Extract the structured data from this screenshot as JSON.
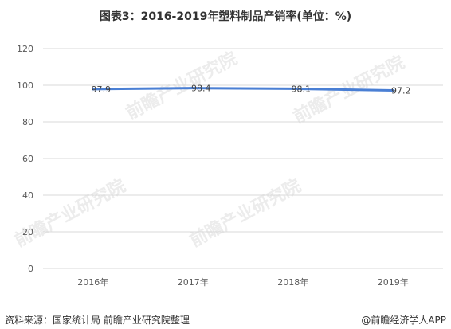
{
  "chart_data": {
    "type": "line",
    "title": "图表3：2016-2019年塑料制品产销率(单位：%)",
    "categories": [
      "2016年",
      "2017年",
      "2018年",
      "2019年"
    ],
    "series": [
      {
        "values": [
          97.9,
          98.4,
          98.1,
          97.2
        ]
      }
    ],
    "data_labels": [
      "97.9",
      "98.4",
      "98.1",
      "97.2"
    ],
    "ylim": [
      0,
      120
    ],
    "yticks": [
      0,
      20,
      40,
      60,
      80,
      100,
      120
    ],
    "grid": true,
    "xlabel": "",
    "ylabel": "",
    "colors": {
      "line": "#4a7fd4",
      "grid": "#d9d9d9",
      "axis_text": "#595959"
    }
  },
  "footer": {
    "source": "资料来源：国家统计局 前瞻产业研究院整理",
    "brand": "@前瞻经济学人APP"
  },
  "watermark_text": "前瞻产业研究院"
}
